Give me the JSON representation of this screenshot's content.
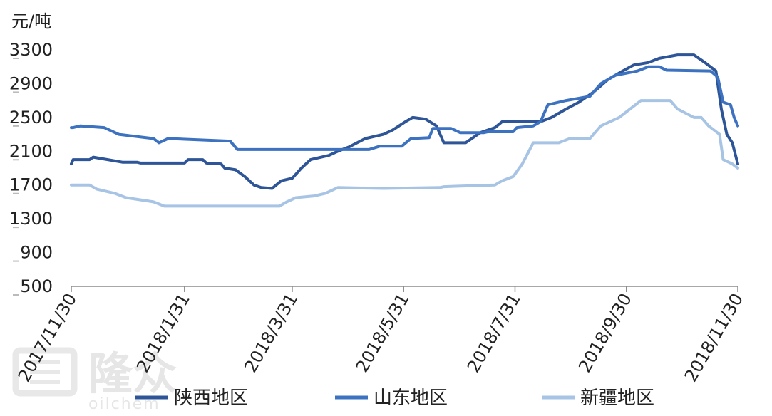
{
  "watermark": {
    "brand_text": "隆众",
    "sub_text": "oilchem"
  },
  "chart_data": {
    "type": "line",
    "title": "",
    "ylabel": "元/吨",
    "xlabel": "",
    "ylim": [
      500,
      3300
    ],
    "yticks": [
      "3300",
      "2900",
      "2500",
      "2100",
      "1700",
      "1300",
      "900",
      "500"
    ],
    "xticks": [
      "2017/11/30",
      "2018/1/31",
      "2018/3/31",
      "2018/5/31",
      "2018/7/31",
      "2018/9/30",
      "2018/11/30"
    ],
    "grid": false,
    "legend_position": "bottom",
    "series": [
      {
        "name": "陕西地区",
        "color": "#2E5597",
        "points": [
          [
            "2017-11-30",
            1950
          ],
          [
            "2017-12-01",
            2000
          ],
          [
            "2017-12-10",
            2000
          ],
          [
            "2017-12-12",
            2030
          ],
          [
            "2017-12-20",
            2000
          ],
          [
            "2017-12-28",
            1970
          ],
          [
            "2018-01-05",
            1970
          ],
          [
            "2018-01-07",
            1960
          ],
          [
            "2018-01-31",
            1960
          ],
          [
            "2018-02-02",
            2000
          ],
          [
            "2018-02-10",
            2000
          ],
          [
            "2018-02-12",
            1960
          ],
          [
            "2018-02-20",
            1950
          ],
          [
            "2018-02-22",
            1900
          ],
          [
            "2018-02-28",
            1880
          ],
          [
            "2018-03-05",
            1800
          ],
          [
            "2018-03-10",
            1700
          ],
          [
            "2018-03-14",
            1670
          ],
          [
            "2018-03-20",
            1660
          ],
          [
            "2018-03-25",
            1750
          ],
          [
            "2018-03-31",
            1780
          ],
          [
            "2018-04-05",
            1900
          ],
          [
            "2018-04-10",
            2000
          ],
          [
            "2018-04-20",
            2050
          ],
          [
            "2018-04-25",
            2100
          ],
          [
            "2018-05-01",
            2150
          ],
          [
            "2018-05-10",
            2250
          ],
          [
            "2018-05-20",
            2300
          ],
          [
            "2018-05-25",
            2350
          ],
          [
            "2018-06-01",
            2450
          ],
          [
            "2018-06-05",
            2500
          ],
          [
            "2018-06-12",
            2480
          ],
          [
            "2018-06-18",
            2400
          ],
          [
            "2018-06-22",
            2200
          ],
          [
            "2018-07-04",
            2200
          ],
          [
            "2018-07-12",
            2320
          ],
          [
            "2018-07-20",
            2380
          ],
          [
            "2018-07-24",
            2450
          ],
          [
            "2018-08-14",
            2450
          ],
          [
            "2018-08-20",
            2500
          ],
          [
            "2018-08-28",
            2600
          ],
          [
            "2018-09-04",
            2680
          ],
          [
            "2018-09-12",
            2800
          ],
          [
            "2018-09-20",
            2950
          ],
          [
            "2018-09-28",
            3050
          ],
          [
            "2018-10-04",
            3120
          ],
          [
            "2018-10-12",
            3150
          ],
          [
            "2018-10-18",
            3200
          ],
          [
            "2018-10-28",
            3240
          ],
          [
            "2018-11-06",
            3240
          ],
          [
            "2018-11-12",
            3150
          ],
          [
            "2018-11-18",
            3050
          ],
          [
            "2018-11-21",
            2600
          ],
          [
            "2018-11-24",
            2300
          ],
          [
            "2018-11-27",
            2200
          ],
          [
            "2018-11-30",
            1950
          ]
        ]
      },
      {
        "name": "山东地区",
        "color": "#3D72C0",
        "points": [
          [
            "2017-11-30",
            2380
          ],
          [
            "2017-12-01",
            2380
          ],
          [
            "2017-12-05",
            2400
          ],
          [
            "2017-12-18",
            2380
          ],
          [
            "2017-12-26",
            2300
          ],
          [
            "2018-01-14",
            2250
          ],
          [
            "2018-01-17",
            2200
          ],
          [
            "2018-01-22",
            2250
          ],
          [
            "2018-02-25",
            2220
          ],
          [
            "2018-03-01",
            2120
          ],
          [
            "2018-05-12",
            2120
          ],
          [
            "2018-05-18",
            2160
          ],
          [
            "2018-05-30",
            2160
          ],
          [
            "2018-06-04",
            2250
          ],
          [
            "2018-06-14",
            2260
          ],
          [
            "2018-06-16",
            2370
          ],
          [
            "2018-06-26",
            2370
          ],
          [
            "2018-07-01",
            2320
          ],
          [
            "2018-07-14",
            2320
          ],
          [
            "2018-07-16",
            2330
          ],
          [
            "2018-07-30",
            2330
          ],
          [
            "2018-08-01",
            2380
          ],
          [
            "2018-08-10",
            2400
          ],
          [
            "2018-08-14",
            2450
          ],
          [
            "2018-08-18",
            2650
          ],
          [
            "2018-08-28",
            2700
          ],
          [
            "2018-09-10",
            2750
          ],
          [
            "2018-09-16",
            2900
          ],
          [
            "2018-09-24",
            3000
          ],
          [
            "2018-10-06",
            3050
          ],
          [
            "2018-10-12",
            3100
          ],
          [
            "2018-10-18",
            3100
          ],
          [
            "2018-10-22",
            3060
          ],
          [
            "2018-11-15",
            3050
          ],
          [
            "2018-11-19",
            2980
          ],
          [
            "2018-11-22",
            2680
          ],
          [
            "2018-11-26",
            2650
          ],
          [
            "2018-11-28",
            2500
          ],
          [
            "2018-11-30",
            2400
          ]
        ]
      },
      {
        "name": "新疆地区",
        "color": "#A7C4E5",
        "points": [
          [
            "2017-11-30",
            1700
          ],
          [
            "2017-12-10",
            1700
          ],
          [
            "2017-12-14",
            1650
          ],
          [
            "2017-12-24",
            1600
          ],
          [
            "2017-12-30",
            1550
          ],
          [
            "2018-01-14",
            1500
          ],
          [
            "2018-01-20",
            1450
          ],
          [
            "2018-03-24",
            1450
          ],
          [
            "2018-03-28",
            1500
          ],
          [
            "2018-04-02",
            1550
          ],
          [
            "2018-04-12",
            1570
          ],
          [
            "2018-04-18",
            1600
          ],
          [
            "2018-04-25",
            1670
          ],
          [
            "2018-05-20",
            1660
          ],
          [
            "2018-06-20",
            1670
          ],
          [
            "2018-06-22",
            1680
          ],
          [
            "2018-07-20",
            1700
          ],
          [
            "2018-07-24",
            1750
          ],
          [
            "2018-07-30",
            1800
          ],
          [
            "2018-08-04",
            1950
          ],
          [
            "2018-08-10",
            2200
          ],
          [
            "2018-08-24",
            2200
          ],
          [
            "2018-08-30",
            2250
          ],
          [
            "2018-09-10",
            2250
          ],
          [
            "2018-09-16",
            2400
          ],
          [
            "2018-09-26",
            2500
          ],
          [
            "2018-10-02",
            2600
          ],
          [
            "2018-10-08",
            2700
          ],
          [
            "2018-10-24",
            2700
          ],
          [
            "2018-10-28",
            2600
          ],
          [
            "2018-11-06",
            2500
          ],
          [
            "2018-11-10",
            2500
          ],
          [
            "2018-11-14",
            2400
          ],
          [
            "2018-11-20",
            2300
          ],
          [
            "2018-11-22",
            2000
          ],
          [
            "2018-11-27",
            1950
          ],
          [
            "2018-11-30",
            1900
          ]
        ]
      }
    ]
  }
}
